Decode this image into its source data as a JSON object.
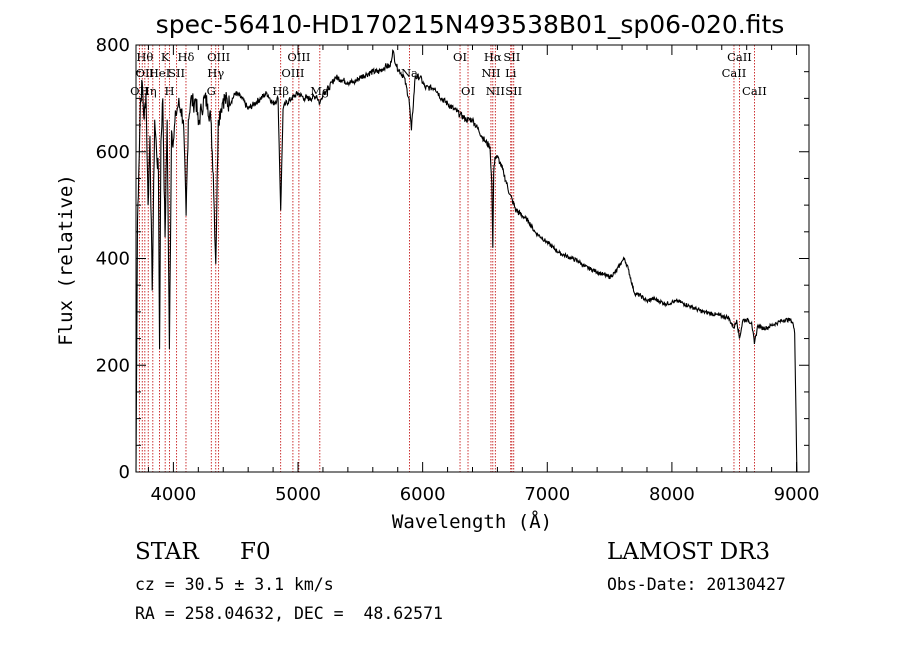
{
  "chart_data": {
    "type": "line",
    "title": "spec-56410-HD170215N493538B01_sp06-020.fits",
    "xlabel": "Wavelength (Å)",
    "ylabel": "Flux (relative)",
    "xlim": [
      3700,
      9100
    ],
    "ylim": [
      0,
      800
    ],
    "x_ticks": [
      4000,
      5000,
      6000,
      7000,
      8000,
      9000
    ],
    "y_ticks": [
      0,
      200,
      400,
      600,
      800
    ],
    "x_tick_labels": [
      "4000",
      "5000",
      "6000",
      "7000",
      "8000",
      "9000"
    ],
    "y_tick_labels": [
      "0",
      "200",
      "400",
      "600",
      "800"
    ],
    "series": [
      {
        "name": "flux",
        "points": [
          [
            3700,
            0
          ],
          [
            3705,
            200
          ],
          [
            3712,
            470
          ],
          [
            3722,
            560
          ],
          [
            3735,
            690
          ],
          [
            3750,
            730
          ],
          [
            3765,
            660
          ],
          [
            3780,
            710
          ],
          [
            3797,
            500
          ],
          [
            3812,
            630
          ],
          [
            3830,
            340
          ],
          [
            3850,
            660
          ],
          [
            3865,
            600
          ],
          [
            3880,
            560
          ],
          [
            3889,
            230
          ],
          [
            3900,
            620
          ],
          [
            3915,
            700
          ],
          [
            3933,
            440
          ],
          [
            3950,
            660
          ],
          [
            3968,
            230
          ],
          [
            3985,
            640
          ],
          [
            4000,
            620
          ],
          [
            4020,
            670
          ],
          [
            4040,
            690
          ],
          [
            4060,
            680
          ],
          [
            4080,
            660
          ],
          [
            4102,
            480
          ],
          [
            4120,
            660
          ],
          [
            4140,
            700
          ],
          [
            4160,
            690
          ],
          [
            4180,
            700
          ],
          [
            4200,
            650
          ],
          [
            4225,
            680
          ],
          [
            4250,
            700
          ],
          [
            4275,
            690
          ],
          [
            4300,
            660
          ],
          [
            4320,
            560
          ],
          [
            4340,
            390
          ],
          [
            4360,
            660
          ],
          [
            4380,
            680
          ],
          [
            4400,
            700
          ],
          [
            4450,
            690
          ],
          [
            4500,
            710
          ],
          [
            4550,
            700
          ],
          [
            4600,
            680
          ],
          [
            4650,
            690
          ],
          [
            4700,
            700
          ],
          [
            4750,
            710
          ],
          [
            4800,
            690
          ],
          [
            4840,
            700
          ],
          [
            4861,
            490
          ],
          [
            4880,
            680
          ],
          [
            4900,
            690
          ],
          [
            4950,
            700
          ],
          [
            5000,
            710
          ],
          [
            5050,
            700
          ],
          [
            5100,
            700
          ],
          [
            5150,
            705
          ],
          [
            5175,
            690
          ],
          [
            5200,
            710
          ],
          [
            5250,
            720
          ],
          [
            5300,
            740
          ],
          [
            5350,
            735
          ],
          [
            5400,
            730
          ],
          [
            5450,
            730
          ],
          [
            5500,
            740
          ],
          [
            5550,
            745
          ],
          [
            5600,
            750
          ],
          [
            5650,
            750
          ],
          [
            5700,
            760
          ],
          [
            5740,
            760
          ],
          [
            5760,
            790
          ],
          [
            5790,
            760
          ],
          [
            5850,
            740
          ],
          [
            5890,
            700
          ],
          [
            5910,
            640
          ],
          [
            5940,
            740
          ],
          [
            5980,
            740
          ],
          [
            6020,
            720
          ],
          [
            6060,
            720
          ],
          [
            6100,
            720
          ],
          [
            6150,
            700
          ],
          [
            6200,
            690
          ],
          [
            6250,
            680
          ],
          [
            6300,
            670
          ],
          [
            6350,
            660
          ],
          [
            6400,
            660
          ],
          [
            6450,
            640
          ],
          [
            6500,
            620
          ],
          [
            6540,
            610
          ],
          [
            6555,
            540
          ],
          [
            6563,
            420
          ],
          [
            6570,
            560
          ],
          [
            6580,
            590
          ],
          [
            6600,
            590
          ],
          [
            6620,
            580
          ],
          [
            6650,
            560
          ],
          [
            6700,
            520
          ],
          [
            6750,
            490
          ],
          [
            6800,
            480
          ],
          [
            6850,
            470
          ],
          [
            6900,
            450
          ],
          [
            6950,
            440
          ],
          [
            7000,
            430
          ],
          [
            7050,
            420
          ],
          [
            7100,
            410
          ],
          [
            7150,
            405
          ],
          [
            7200,
            400
          ],
          [
            7250,
            395
          ],
          [
            7300,
            385
          ],
          [
            7350,
            380
          ],
          [
            7400,
            375
          ],
          [
            7450,
            370
          ],
          [
            7500,
            365
          ],
          [
            7550,
            375
          ],
          [
            7600,
            395
          ],
          [
            7620,
            400
          ],
          [
            7650,
            380
          ],
          [
            7700,
            335
          ],
          [
            7750,
            330
          ],
          [
            7800,
            320
          ],
          [
            7850,
            325
          ],
          [
            7900,
            320
          ],
          [
            7950,
            315
          ],
          [
            8000,
            318
          ],
          [
            8050,
            320
          ],
          [
            8100,
            315
          ],
          [
            8150,
            310
          ],
          [
            8200,
            305
          ],
          [
            8250,
            300
          ],
          [
            8300,
            298
          ],
          [
            8350,
            295
          ],
          [
            8400,
            292
          ],
          [
            8450,
            290
          ],
          [
            8498,
            270
          ],
          [
            8520,
            285
          ],
          [
            8542,
            250
          ],
          [
            8570,
            285
          ],
          [
            8600,
            285
          ],
          [
            8640,
            280
          ],
          [
            8662,
            240
          ],
          [
            8690,
            275
          ],
          [
            8720,
            270
          ],
          [
            8760,
            270
          ],
          [
            8800,
            275
          ],
          [
            8850,
            280
          ],
          [
            8900,
            285
          ],
          [
            8950,
            285
          ],
          [
            8970,
            280
          ],
          [
            8985,
            260
          ],
          [
            8995,
            120
          ],
          [
            9000,
            40
          ],
          [
            9003,
            0
          ]
        ]
      }
    ],
    "line_markers": [
      {
        "wl": 3727,
        "labels": [
          "OII"
        ],
        "row": 3
      },
      {
        "wl": 3750,
        "labels": [],
        "row": 0
      },
      {
        "wl": 3771,
        "labels": [
          "Hθ",
          "OII"
        ],
        "row": 1
      },
      {
        "wl": 3798,
        "labels": [
          "Hη"
        ],
        "row": 3
      },
      {
        "wl": 3835,
        "labels": [],
        "row": 0
      },
      {
        "wl": 3889,
        "labels": [
          "HeI"
        ],
        "row": 2
      },
      {
        "wl": 3934,
        "labels": [
          "K"
        ],
        "row": 1
      },
      {
        "wl": 3969,
        "labels": [
          "H"
        ],
        "row": 3
      },
      {
        "wl": 4026,
        "labels": [
          "SII"
        ],
        "row": 2
      },
      {
        "wl": 4101,
        "labels": [
          "Hδ"
        ],
        "row": 1
      },
      {
        "wl": 4304,
        "labels": [
          "G"
        ],
        "row": 3
      },
      {
        "wl": 4340,
        "labels": [
          "Hγ"
        ],
        "row": 2
      },
      {
        "wl": 4363,
        "labels": [
          "OIII"
        ],
        "row": 1
      },
      {
        "wl": 4861,
        "labels": [
          "Hβ"
        ],
        "row": 3
      },
      {
        "wl": 4959,
        "labels": [
          "OIII"
        ],
        "row": 2
      },
      {
        "wl": 5007,
        "labels": [
          "OIII"
        ],
        "row": 1
      },
      {
        "wl": 5175,
        "labels": [
          "Mg"
        ],
        "row": 3
      },
      {
        "wl": 5894,
        "labels": [
          "Na"
        ],
        "row": 2
      },
      {
        "wl": 6300,
        "labels": [
          "OI"
        ],
        "row": 1
      },
      {
        "wl": 6364,
        "labels": [
          "OI"
        ],
        "row": 3
      },
      {
        "wl": 6548,
        "labels": [
          "NII"
        ],
        "row": 2
      },
      {
        "wl": 6563,
        "labels": [
          "Hα"
        ],
        "row": 1
      },
      {
        "wl": 6583,
        "labels": [
          "NII"
        ],
        "row": 3
      },
      {
        "wl": 6707,
        "labels": [
          "Li"
        ],
        "row": 2
      },
      {
        "wl": 6716,
        "labels": [
          "SII"
        ],
        "row": 1
      },
      {
        "wl": 6731,
        "labels": [
          "SII"
        ],
        "row": 3
      },
      {
        "wl": 8498,
        "labels": [
          "CaII"
        ],
        "row": 2
      },
      {
        "wl": 8542,
        "labels": [
          "CaII"
        ],
        "row": 1
      },
      {
        "wl": 8662,
        "labels": [
          "CaII"
        ],
        "row": 3
      }
    ],
    "annotations": {
      "object_class": "STAR",
      "subclass": "F0",
      "survey": "LAMOST DR3",
      "cz": "cz = 30.5 ± 3.1 km/s",
      "obs_date": "Obs-Date: 20130427",
      "coords": "RA = 258.04632, DEC =  48.62571"
    }
  },
  "colors": {
    "line": "#000000",
    "marker": "#c00000",
    "axis": "#000000"
  }
}
